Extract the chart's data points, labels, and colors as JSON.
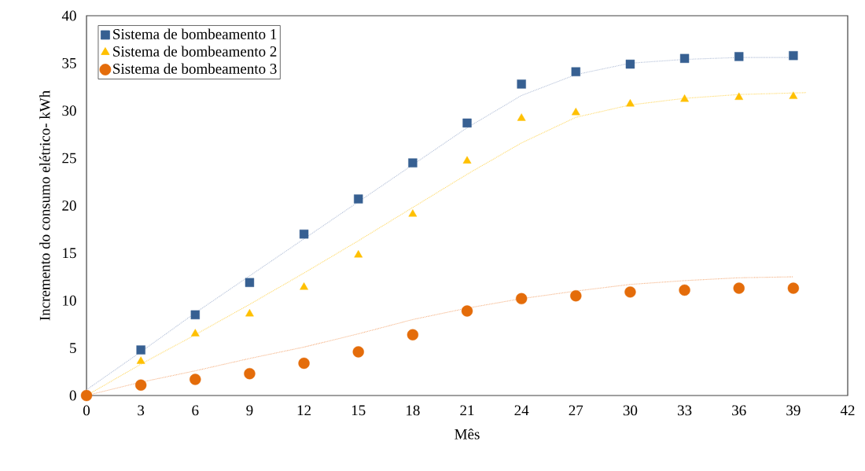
{
  "chart_data": {
    "type": "scatter",
    "xlabel": "Mês",
    "ylabel": "Incremento do consumo elétrico- kWh",
    "xlim": [
      0,
      42
    ],
    "xticks": [
      0,
      3,
      6,
      9,
      12,
      15,
      18,
      21,
      24,
      27,
      30,
      33,
      36,
      39,
      42
    ],
    "ylim": [
      0,
      40
    ],
    "yticks": [
      0,
      5,
      10,
      15,
      20,
      25,
      30,
      35,
      40
    ],
    "grid": false,
    "legend": "top left",
    "x": [
      0,
      3,
      6,
      9,
      12,
      15,
      18,
      21,
      24,
      27,
      30,
      33,
      36,
      39
    ],
    "series": [
      {
        "name": "Sistema de bombeamento 1",
        "color": "#376092",
        "marker": "square",
        "values": [
          null,
          4.8,
          8.5,
          11.9,
          17.0,
          20.7,
          24.5,
          28.7,
          32.8,
          34.1,
          34.9,
          35.5,
          35.7,
          35.8
        ]
      },
      {
        "name": "Sistema de bombeamento 2",
        "color": "#ffc000",
        "marker": "triangle",
        "values": [
          null,
          3.6,
          6.5,
          8.6,
          11.4,
          14.8,
          19.1,
          24.7,
          29.2,
          29.8,
          30.7,
          31.2,
          31.4,
          31.5
        ]
      },
      {
        "name": "Sistema de bombeamento 3",
        "color": "#e46c0a",
        "marker": "circle",
        "values": [
          0,
          1.1,
          1.7,
          2.3,
          3.4,
          4.6,
          6.4,
          8.9,
          10.2,
          10.5,
          10.9,
          11.1,
          11.3,
          11.3
        ]
      },
      {
        "type": "line",
        "color": "#b4c0d8",
        "line_style": "dotted",
        "marker": "none",
        "x": [
          0,
          3,
          6,
          9,
          12,
          15,
          18,
          21,
          24,
          27,
          30,
          33,
          36,
          39
        ],
        "values": [
          0.6,
          4.6,
          8.7,
          12.6,
          16.5,
          20.4,
          24.3,
          28.2,
          31.6,
          33.8,
          35.0,
          35.4,
          35.6,
          35.6
        ]
      },
      {
        "type": "line",
        "color": "#ffd966",
        "line_style": "dotted",
        "marker": "none",
        "x": [
          0,
          3,
          6,
          9,
          12,
          15,
          18,
          21,
          24,
          27,
          30,
          33,
          36,
          39.7
        ],
        "values": [
          0,
          3.3,
          6.4,
          9.6,
          12.9,
          16.3,
          19.8,
          23.3,
          26.6,
          29.3,
          30.6,
          31.3,
          31.7,
          31.9
        ]
      },
      {
        "type": "line",
        "color": "#f4b183",
        "line_style": "dotted",
        "marker": "none",
        "x": [
          0,
          3,
          6,
          9,
          12,
          15,
          18,
          21,
          24,
          27,
          30,
          33,
          36,
          39
        ],
        "values": [
          0,
          1.4,
          2.6,
          3.9,
          5.1,
          6.5,
          8.0,
          9.2,
          10.2,
          11.0,
          11.7,
          12.1,
          12.4,
          12.5
        ]
      }
    ]
  }
}
